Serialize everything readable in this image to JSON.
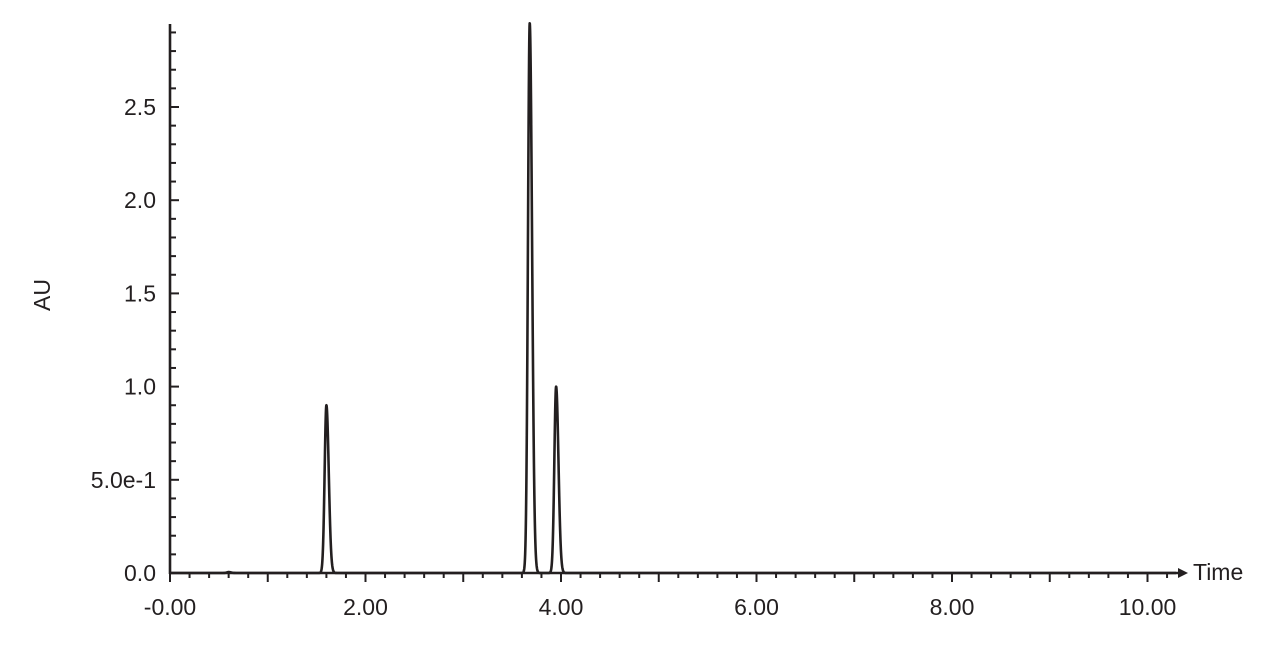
{
  "chart_data": {
    "type": "line",
    "title": "",
    "xlabel": "Time",
    "ylabel": "AU",
    "xlim": [
      0,
      10.3
    ],
    "ylim": [
      0,
      2.95
    ],
    "grid": false,
    "x_ticks": [
      {
        "value": 0,
        "label": "-0.00"
      },
      {
        "value": 2,
        "label": "2.00"
      },
      {
        "value": 4,
        "label": "4.00"
      },
      {
        "value": 6,
        "label": "6.00"
      },
      {
        "value": 8,
        "label": "8.00"
      },
      {
        "value": 10,
        "label": "10.00"
      }
    ],
    "y_ticks": [
      {
        "value": 0,
        "label": "0.0"
      },
      {
        "value": 0.5,
        "label": "5.0e-1"
      },
      {
        "value": 1.0,
        "label": "1.0"
      },
      {
        "value": 1.5,
        "label": "1.5"
      },
      {
        "value": 2.0,
        "label": "2.0"
      },
      {
        "value": 2.5,
        "label": "2.5"
      }
    ],
    "x_minor_step": 0.2,
    "y_minor_step": 0.1,
    "peaks": [
      {
        "time": 0.6,
        "height": 0.005
      },
      {
        "time": 1.6,
        "height": 0.9
      },
      {
        "time": 3.68,
        "height": 2.95
      },
      {
        "time": 3.95,
        "height": 1.0
      }
    ],
    "color": "#231f20"
  }
}
